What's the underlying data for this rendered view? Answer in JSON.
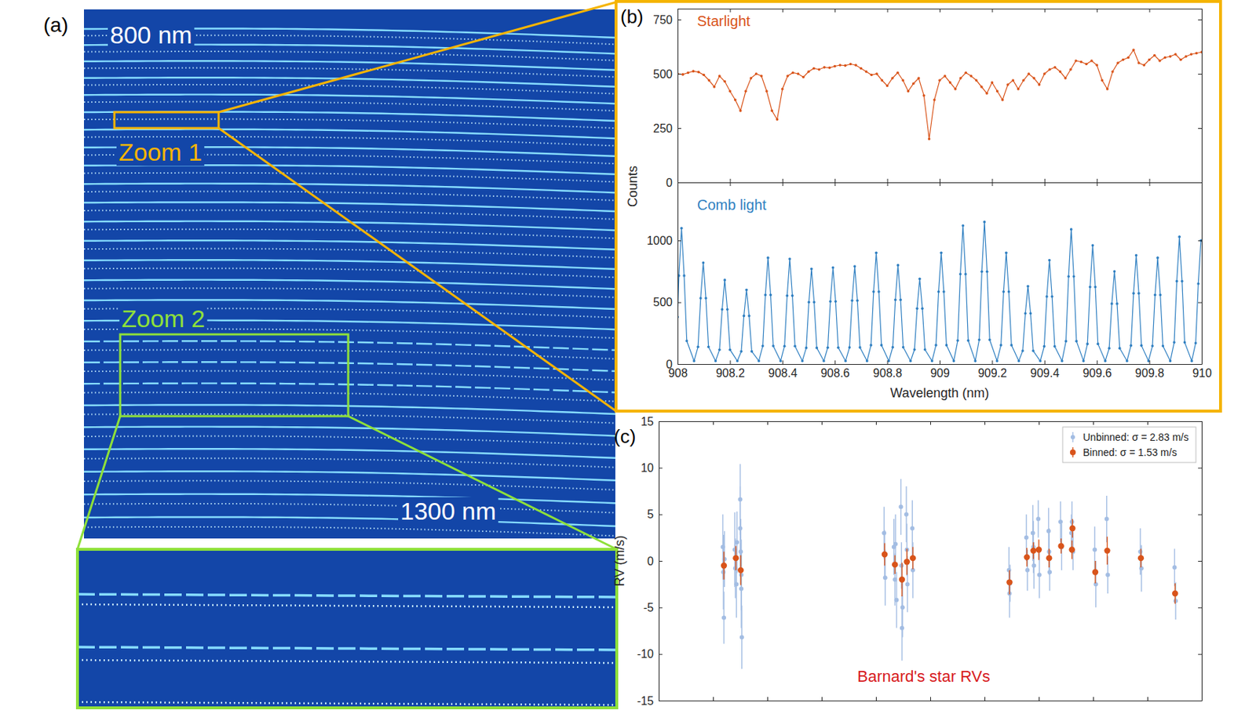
{
  "image_panel": {
    "label": "(a)",
    "top_text": "800 nm",
    "bottom_text": "1300 nm",
    "zoom_labels": [
      "Zoom 1",
      "Zoom 2"
    ]
  },
  "chart_data": [
    {
      "type": "line",
      "label": "(b)",
      "title": "Starlight",
      "ylabel": "Counts",
      "color": "#d9541a",
      "marker": "dot",
      "tick_labels": "y",
      "xlim": [
        908,
        910
      ],
      "xticks": [
        908,
        908.2,
        908.4,
        908.6,
        908.8,
        909,
        909.2,
        909.4,
        909.6,
        909.8,
        910
      ],
      "ylim": [
        0,
        800
      ],
      "yticks": [
        0,
        250,
        500,
        750
      ],
      "x": [
        908,
        908.02,
        908.04,
        908.06,
        908.08,
        908.1,
        908.12,
        908.14,
        908.16,
        908.18,
        908.2,
        908.22,
        908.24,
        908.26,
        908.28,
        908.3,
        908.32,
        908.34,
        908.36,
        908.38,
        908.4,
        908.42,
        908.44,
        908.46,
        908.48,
        908.5,
        908.52,
        908.54,
        908.56,
        908.58,
        908.6,
        908.62,
        908.64,
        908.66,
        908.68,
        908.7,
        908.72,
        908.74,
        908.76,
        908.78,
        908.8,
        908.82,
        908.84,
        908.86,
        908.88,
        908.9,
        908.92,
        908.94,
        908.96,
        908.98,
        909,
        909.02,
        909.04,
        909.06,
        909.08,
        909.1,
        909.12,
        909.14,
        909.16,
        909.18,
        909.2,
        909.22,
        909.24,
        909.26,
        909.28,
        909.3,
        909.32,
        909.34,
        909.36,
        909.38,
        909.4,
        909.42,
        909.44,
        909.46,
        909.48,
        909.5,
        909.52,
        909.54,
        909.56,
        909.58,
        909.6,
        909.62,
        909.64,
        909.66,
        909.68,
        909.7,
        909.72,
        909.74,
        909.76,
        909.78,
        909.8,
        909.82,
        909.84,
        909.86,
        909.88,
        909.9,
        909.92,
        909.94,
        909.96,
        909.98,
        910
      ],
      "values": [
        500,
        497,
        505,
        512,
        508,
        495,
        470,
        440,
        490,
        465,
        420,
        380,
        330,
        420,
        480,
        500,
        490,
        420,
        330,
        290,
        430,
        490,
        505,
        500,
        485,
        510,
        525,
        520,
        530,
        528,
        535,
        540,
        538,
        545,
        540,
        525,
        510,
        495,
        500,
        470,
        445,
        480,
        505,
        470,
        420,
        455,
        480,
        400,
        200,
        380,
        470,
        490,
        460,
        430,
        480,
        505,
        490,
        470,
        440,
        410,
        460,
        420,
        380,
        450,
        470,
        430,
        470,
        500,
        480,
        450,
        500,
        520,
        530,
        510,
        480,
        520,
        560,
        555,
        545,
        560,
        540,
        470,
        430,
        510,
        550,
        565,
        575,
        610,
        550,
        540,
        565,
        585,
        560,
        575,
        580,
        590,
        565,
        580,
        590,
        595,
        600
      ]
    },
    {
      "type": "line",
      "title": "Comb light",
      "xlabel": "Wavelength (nm)",
      "color": "#2f7fc1",
      "marker": "dot",
      "xlim": [
        908,
        910
      ],
      "xticks": [
        908,
        908.2,
        908.4,
        908.6,
        908.8,
        909,
        909.2,
        909.4,
        909.6,
        909.8,
        910
      ],
      "ylim": [
        0,
        1470
      ],
      "yticks": [
        0,
        500,
        1000
      ],
      "x": [
        908.0,
        908.005,
        908.015,
        908.025,
        908.035,
        908.063,
        908.078,
        908.088,
        908.098,
        908.108,
        908.118,
        908.145,
        908.16,
        908.17,
        908.18,
        908.19,
        908.2,
        908.228,
        908.243,
        908.253,
        908.263,
        908.273,
        908.283,
        908.31,
        908.325,
        908.335,
        908.345,
        908.355,
        908.365,
        908.393,
        908.408,
        908.418,
        908.428,
        908.438,
        908.448,
        908.476,
        908.491,
        908.501,
        908.511,
        908.521,
        908.531,
        908.558,
        908.573,
        908.583,
        908.593,
        908.603,
        908.613,
        908.641,
        908.656,
        908.666,
        908.676,
        908.686,
        908.696,
        908.723,
        908.738,
        908.748,
        908.758,
        908.768,
        908.778,
        908.806,
        908.821,
        908.831,
        908.841,
        908.851,
        908.861,
        908.889,
        908.904,
        908.914,
        908.924,
        908.934,
        908.944,
        908.971,
        908.986,
        908.996,
        909.006,
        909.016,
        909.026,
        909.054,
        909.069,
        909.079,
        909.089,
        909.099,
        909.109,
        909.136,
        909.151,
        909.161,
        909.171,
        909.181,
        909.191,
        909.219,
        909.234,
        909.244,
        909.254,
        909.264,
        909.274,
        909.302,
        909.317,
        909.327,
        909.337,
        909.347,
        909.357,
        909.384,
        909.399,
        909.409,
        909.419,
        909.429,
        909.439,
        909.467,
        909.482,
        909.492,
        909.502,
        909.512,
        909.522,
        909.549,
        909.564,
        909.574,
        909.584,
        909.594,
        909.604,
        909.632,
        909.647,
        909.657,
        909.667,
        909.677,
        909.687,
        909.715,
        909.73,
        909.74,
        909.75,
        909.76,
        909.77,
        909.797,
        909.812,
        909.822,
        909.832,
        909.842,
        909.852,
        909.88,
        909.895,
        909.905,
        909.915,
        909.925,
        909.935,
        909.962,
        909.977,
        909.987,
        909.997
      ],
      "values": [
        380,
        715,
        1100,
        715,
        187,
        25,
        139,
        533,
        820,
        533,
        139,
        25,
        116,
        442,
        680,
        442,
        116,
        25,
        102,
        390,
        600,
        390,
        102,
        25,
        146,
        559,
        860,
        559,
        146,
        25,
        145,
        553,
        850,
        553,
        145,
        25,
        131,
        501,
        770,
        501,
        131,
        25,
        133,
        507,
        780,
        507,
        133,
        25,
        134,
        514,
        790,
        514,
        134,
        25,
        153,
        585,
        900,
        585,
        153,
        25,
        136,
        520,
        800,
        520,
        136,
        25,
        117,
        449,
        690,
        449,
        117,
        25,
        153,
        585,
        900,
        585,
        153,
        25,
        190,
        728,
        1120,
        728,
        190,
        25,
        196,
        748,
        1150,
        748,
        196,
        25,
        153,
        585,
        900,
        585,
        153,
        25,
        107,
        410,
        630,
        410,
        107,
        25,
        143,
        546,
        840,
        546,
        143,
        25,
        185,
        709,
        1090,
        709,
        185,
        25,
        163,
        624,
        960,
        624,
        163,
        25,
        128,
        488,
        750,
        488,
        128,
        25,
        150,
        572,
        880,
        572,
        150,
        25,
        146,
        559,
        860,
        559,
        146,
        25,
        175,
        670,
        1030,
        670,
        175,
        25,
        170,
        650,
        1000
      ]
    },
    {
      "type": "scatter",
      "label": "(c)",
      "ylabel": "RV (m/s)",
      "annotation": "Barnard's star RVs",
      "marker": "circle",
      "legend": "upper right",
      "tick_labels": "y",
      "xlim": [
        0,
        100
      ],
      "xticks": [
        0,
        10,
        20,
        30,
        40,
        50,
        60,
        70,
        80,
        90,
        100
      ],
      "ylim": [
        -15,
        15
      ],
      "yticks": [
        -15,
        -10,
        -5,
        0,
        5,
        10,
        15
      ],
      "series": [
        {
          "name": "Unbinned: σ = 2.83 m/s",
          "color": "#a3bde3",
          "x": [
            11.8,
            11.9,
            12.0,
            12.1,
            14.0,
            14.1,
            14.3,
            14.4,
            15.0,
            15.0,
            15.1,
            15.2,
            15.2,
            15.3,
            41.5,
            41.6,
            41.7,
            43.3,
            43.5,
            43.6,
            43.8,
            44.6,
            44.7,
            44.8,
            44.9,
            45.6,
            45.7,
            45.8,
            46.7,
            46.8,
            64.5,
            64.6,
            64.7,
            67.7,
            67.9,
            68.9,
            69.0,
            69.1,
            69.9,
            70.1,
            71.8,
            71.9,
            72.0,
            74.0,
            74.2,
            76.0,
            76.1,
            76.3,
            80.3,
            80.5,
            82.5,
            82.7,
            88.7,
            88.9,
            95.0,
            95.2
          ],
          "values": [
            1.5,
            -1.2,
            -6.1,
            0.2,
            1.2,
            -0.8,
            -2.5,
            2.0,
            6.6,
            3.5,
            1.0,
            -1.5,
            -3.0,
            -8.2,
            3.0,
            0.8,
            -1.8,
            1.5,
            -2.0,
            1.8,
            -4.2,
            5.8,
            -0.5,
            -7.2,
            -5.0,
            5.0,
            1.2,
            -2.5,
            3.5,
            -1.0,
            -1.0,
            -3.5,
            -2.4,
            2.5,
            -1.0,
            3.0,
            1.5,
            -0.5,
            4.5,
            -1.5,
            3.2,
            1.0,
            -1.2,
            4.2,
            1.5,
            3.0,
            4.2,
            1.0,
            1.2,
            -2.5,
            4.5,
            -1.5,
            1.0,
            -0.8,
            -0.7,
            -4.3
          ],
          "errors": [
            3.5,
            4.0,
            2.8,
            3.0,
            4.0,
            3.2,
            3.6,
            3.3,
            3.8,
            4.5,
            3.5,
            3.8,
            4.2,
            3.4,
            2.8,
            2.5,
            3.0,
            3.0,
            2.8,
            3.2,
            3.0,
            3.0,
            2.5,
            3.5,
            3.2,
            3.0,
            2.8,
            3.0,
            3.0,
            3.0,
            2.5,
            2.6,
            2.0,
            2.5,
            2.2,
            3.0,
            2.8,
            2.5,
            2.0,
            2.5,
            2.5,
            2.5,
            2.0,
            2.2,
            2.5,
            2.0,
            2.2,
            2.0,
            2.5,
            2.5,
            2.5,
            2.0,
            2.5,
            2.5,
            2.0,
            2.0
          ]
        },
        {
          "name": "Binned: σ = 1.53 m/s",
          "color": "#d9541a",
          "x": [
            12.0,
            14.2,
            15.1,
            41.6,
            43.5,
            44.8,
            45.7,
            46.8,
            64.6,
            67.8,
            69.0,
            70.0,
            71.9,
            74.1,
            76.1,
            76.2,
            80.4,
            82.6,
            88.8,
            95.1
          ],
          "values": [
            -0.5,
            0.3,
            -1.0,
            0.7,
            -0.4,
            -2.0,
            -0.1,
            0.3,
            -2.3,
            0.4,
            1.1,
            1.2,
            0.3,
            1.6,
            1.2,
            3.5,
            -1.2,
            1.1,
            0.3,
            -3.5
          ],
          "errors": [
            1.5,
            1.3,
            1.6,
            1.2,
            1.0,
            1.8,
            1.4,
            1.2,
            1.3,
            1.0,
            0.9,
            1.1,
            1.0,
            0.8,
            1.0,
            1.0,
            1.2,
            1.5,
            1.0,
            1.1
          ]
        }
      ]
    }
  ]
}
